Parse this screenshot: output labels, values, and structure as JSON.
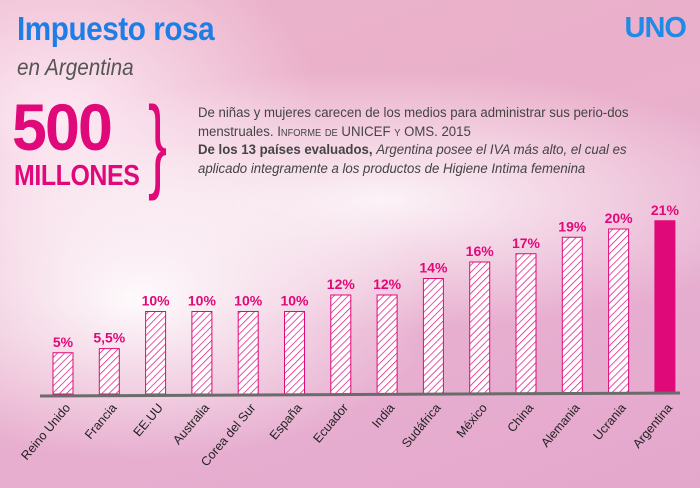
{
  "header": {
    "title": "Impuesto rosa",
    "subtitle": "en Argentina",
    "logo": "UNO"
  },
  "highlight": {
    "number": "500",
    "unit": "MILLONES",
    "text1": "De niñas y mujeres carecen de los medios para administrar sus perio-dos menstruales.",
    "source": "Informe de UNICEF y OMS.",
    "year": "2015",
    "text2_bold": "De los 13 países evaluados,",
    "text2_italic": "Argentina posee el IVA más alto, el cual es aplicado integramente a los productos de Higiene Intima femenina"
  },
  "colors": {
    "accent": "#e0097a",
    "title": "#1f7de6",
    "axis": "#6b6b6b"
  },
  "chart_data": {
    "type": "bar",
    "categories": [
      "Reino Unido",
      "Francia",
      "EE.UU",
      "Australia",
      "Corea del Sur",
      "España",
      "Ecuador",
      "India",
      "Sudáfrica",
      "México",
      "China",
      "Alemania",
      "Ucrania",
      "Argentina"
    ],
    "values": [
      5,
      5.5,
      10,
      10,
      10,
      10,
      12,
      12,
      14,
      16,
      17,
      19,
      20,
      21
    ],
    "data_labels": [
      "5%",
      "5,5%",
      "10%",
      "10%",
      "10%",
      "10%",
      "12%",
      "12%",
      "14%",
      "16%",
      "17%",
      "19%",
      "20%",
      "21%"
    ],
    "highlighted": "Argentina",
    "fill": {
      "default": "hatched",
      "highlighted": "solid"
    },
    "title": "",
    "xlabel": "",
    "ylabel": "",
    "grid": false
  }
}
